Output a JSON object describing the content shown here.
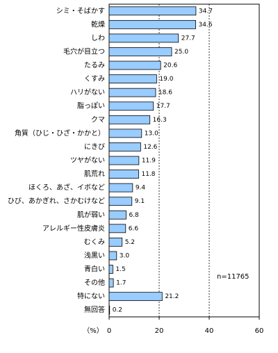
{
  "chart_data": {
    "type": "bar",
    "orientation": "horizontal",
    "categories": [
      "シミ・そばかす",
      "乾燥",
      "しわ",
      "毛穴が目立つ",
      "たるみ",
      "くすみ",
      "ハリがない",
      "脂っぽい",
      "クマ",
      "角質（ひじ・ひざ・かかと）",
      "にきび",
      "ツヤがない",
      "肌荒れ",
      "ほくろ、あざ、イボなど",
      "ひび、あかぎれ、さかむけなど",
      "肌が弱い",
      "アレルギー性皮膚炎",
      "むくみ",
      "浅黒い",
      "青白い",
      "その他",
      "特にない",
      "無回答"
    ],
    "values": [
      34.7,
      34.6,
      27.7,
      25.0,
      20.6,
      19.0,
      18.6,
      17.7,
      16.3,
      13.0,
      12.6,
      11.9,
      11.8,
      9.4,
      9.1,
      6.8,
      6.6,
      5.2,
      3.0,
      1.5,
      1.7,
      21.2,
      0.2
    ],
    "value_labels": [
      "34.7",
      "34.6",
      "27.7",
      "25.0",
      "20.6",
      "19.0",
      "18.6",
      "17.7",
      "16.3",
      "13.0",
      "12.6",
      "11.9",
      "11.8",
      "9.4",
      "9.1",
      "6.8",
      "6.6",
      "5.2",
      "3.0",
      "1.5",
      "1.7",
      "21.2",
      "0.2"
    ],
    "color": "#99ccff",
    "xlim": [
      0,
      60
    ],
    "xticks": [
      0,
      20,
      40,
      60
    ],
    "grid": true,
    "x_label": "（%）",
    "annotation": "n=11765"
  }
}
